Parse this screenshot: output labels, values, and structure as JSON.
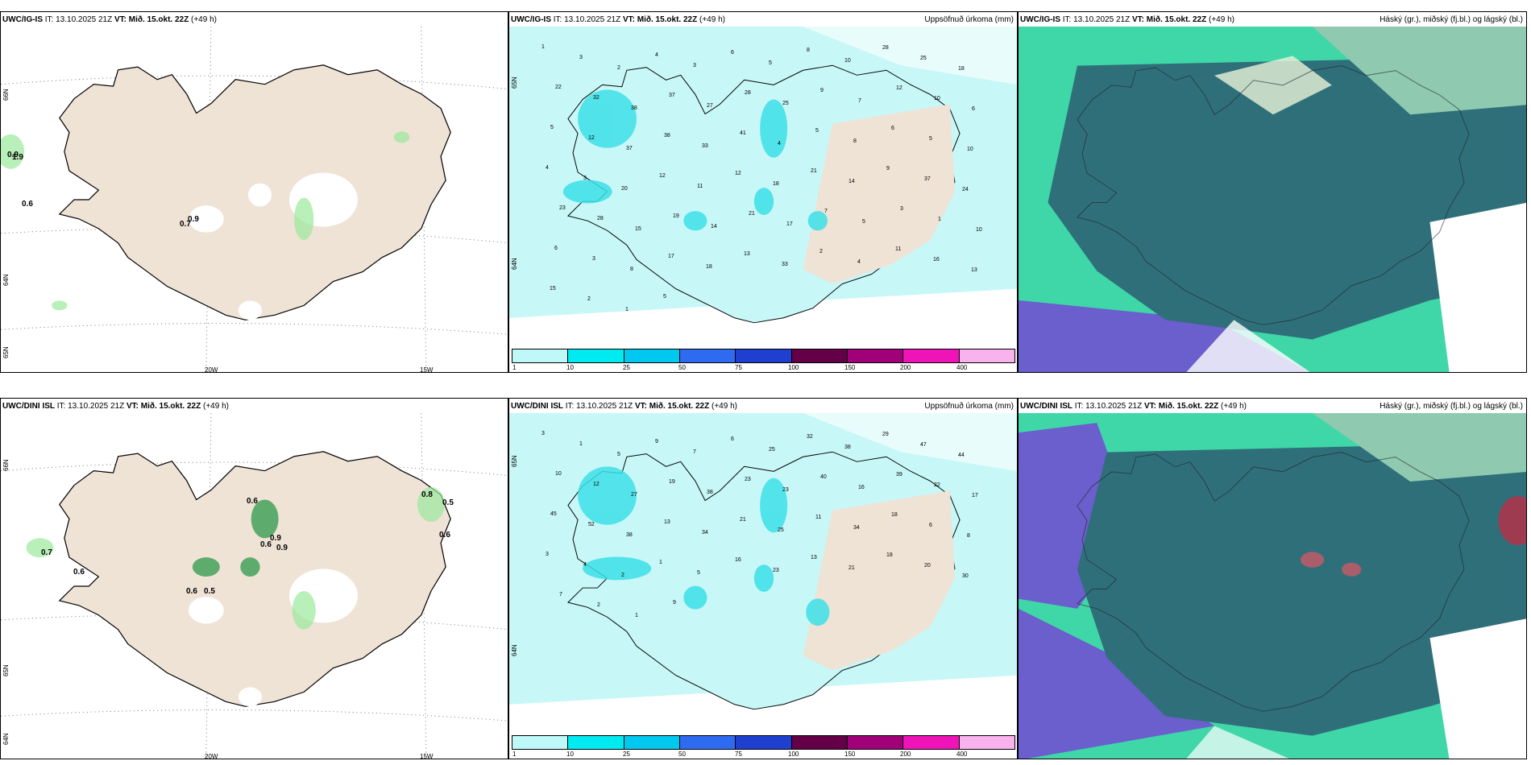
{
  "colors": {
    "land": "#efe3d6",
    "precip_light": "#c8f7f7",
    "precip_mid": "#3de0e8",
    "cloud_low": "#6a5fcc",
    "cloud_mid": "#2f6f7a",
    "cloud_high": "#3fd6a8"
  },
  "rows": [
    {
      "wind_panel": {
        "model": "UWC/IG-IS",
        "it_label": "IT:",
        "it_value": "13.10.2025 21Z",
        "vt_label": "VT:",
        "vt_value": "Mið. 15.okt. 22Z",
        "lead": "(+49 h)",
        "lat_labels": [
          "66N",
          "64N",
          "65N"
        ],
        "lon_labels": [
          "20W",
          "15W"
        ],
        "values": [
          "0.9",
          "1.9",
          "0.6",
          "0.7",
          "0.9"
        ]
      },
      "precip_panel": {
        "model": "UWC/IG-IS",
        "it_label": "IT:",
        "it_value": "13.10.2025 21Z",
        "vt_label": "VT:",
        "vt_value": "Mið. 15.okt. 22Z",
        "lead": "(+49 h)",
        "right_title": "Uppsöfnuð úrkoma (mm)",
        "lat_labels": [
          "65N",
          "64N"
        ],
        "numbers": [
          "1",
          "3",
          "2",
          "4",
          "3",
          "6",
          "5",
          "8",
          "10",
          "28",
          "25",
          "18",
          "22",
          "32",
          "38",
          "37",
          "27",
          "28",
          "25",
          "9",
          "7",
          "12",
          "10",
          "6",
          "5",
          "12",
          "37",
          "38",
          "33",
          "41",
          "4",
          "5",
          "8",
          "6",
          "5",
          "10",
          "4",
          "3",
          "20",
          "12",
          "11",
          "12",
          "18",
          "21",
          "14",
          "9",
          "37",
          "24",
          "23",
          "28",
          "15",
          "19",
          "14",
          "21",
          "17",
          "7",
          "5",
          "3",
          "1",
          "10",
          "6",
          "3",
          "8",
          "17",
          "18",
          "13",
          "33",
          "2",
          "4",
          "11",
          "16",
          "13",
          "15",
          "2",
          "1",
          "5"
        ],
        "colorbar_ticks": [
          "1",
          "10",
          "25",
          "50",
          "75",
          "100",
          "150",
          "200",
          "400"
        ]
      },
      "cloud_panel": {
        "model": "UWC/IG-IS",
        "it_label": "IT:",
        "it_value": "13.10.2025 21Z",
        "vt_label": "VT:",
        "vt_value": "Mið. 15.okt. 22Z",
        "lead": "(+49 h)",
        "right_title": "Háský (gr.), miðský (fj.bl.) og lágský (bl.)"
      }
    },
    {
      "wind_panel": {
        "model": "UWC/DINI ISL",
        "it_label": "IT:",
        "it_value": "13.10.2025 21Z",
        "vt_label": "VT:",
        "vt_value": "Mið. 15.okt. 22Z",
        "lead": "(+49 h)",
        "lat_labels": [
          "66N",
          "65N",
          "64N"
        ],
        "lon_labels": [
          "20W",
          "15W"
        ],
        "values": [
          "0.7",
          "0.6",
          "0.6",
          "0.5",
          "0.6",
          "0.9",
          "0.6",
          "0.9",
          "0.8",
          "0.5",
          "0.6"
        ]
      },
      "precip_panel": {
        "model": "UWC/DINI ISL",
        "it_label": "IT:",
        "it_value": "13.10.2025 21Z",
        "vt_label": "VT:",
        "vt_value": "Mið. 15.okt. 22Z",
        "lead": "(+49 h)",
        "right_title": "Uppsöfnuð úrkoma (mm)",
        "lat_labels": [
          "65N",
          "64N"
        ],
        "numbers": [
          "3",
          "1",
          "5",
          "9",
          "7",
          "6",
          "25",
          "32",
          "38",
          "29",
          "47",
          "44",
          "10",
          "12",
          "27",
          "19",
          "38",
          "23",
          "23",
          "40",
          "16",
          "39",
          "22",
          "17",
          "45",
          "52",
          "38",
          "13",
          "34",
          "21",
          "25",
          "11",
          "34",
          "18",
          "6",
          "8",
          "3",
          "4",
          "2",
          "1",
          "5",
          "16",
          "23",
          "13",
          "21",
          "18",
          "20",
          "30",
          "7",
          "2",
          "1",
          "9"
        ],
        "colorbar_ticks": [
          "1",
          "10",
          "25",
          "50",
          "75",
          "100",
          "150",
          "200",
          "400"
        ]
      },
      "cloud_panel": {
        "model": "UWC/DINI ISL",
        "it_label": "IT:",
        "it_value": "13.10.2025 21Z",
        "vt_label": "VT:",
        "vt_value": "Mið. 15.okt. 22Z",
        "lead": "(+49 h)",
        "right_title": "Háský (gr.), miðský (fj.bl.) og lágský (bl.)"
      }
    }
  ]
}
